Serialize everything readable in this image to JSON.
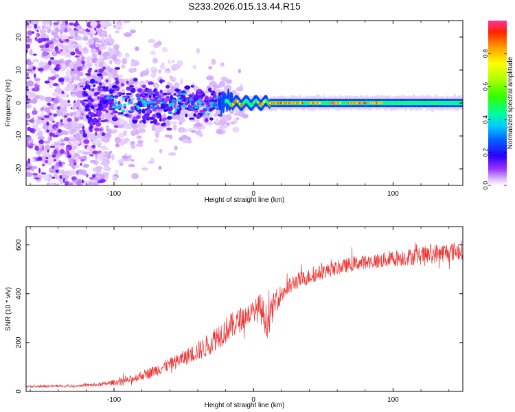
{
  "title": "S233.2026.015.13.44.R15",
  "chart_data": [
    {
      "type": "heatmap",
      "xlabel": "Height of straight line (km)",
      "ylabel": "Frequency (Hz)",
      "xlim": [
        -163,
        150
      ],
      "ylim": [
        -25,
        25
      ],
      "xticks": [
        -100,
        0,
        100
      ],
      "yticks": [
        20,
        10,
        0,
        -10,
        -20
      ],
      "colorbar": {
        "label": "Normalized spectral amplitude",
        "range": [
          0,
          1
        ],
        "ticks": [
          "0.0",
          "0.2",
          "0.4",
          "0.6",
          "0.8"
        ]
      },
      "description_points": {
        "noise_region_x": [
          -163,
          -110
        ],
        "scattered_region_x": [
          -120,
          -25
        ],
        "ridge_region_x": [
          -25,
          150
        ],
        "ridge_frequency_hz": 0
      }
    },
    {
      "type": "line",
      "color": "#ee3333",
      "xlabel": "Height of straight line (km)",
      "ylabel": "SNR (10 * v/v)",
      "xlim": [
        -163,
        150
      ],
      "ylim": [
        0,
        675
      ],
      "xticks": [
        -100,
        0,
        100
      ],
      "yticks": [
        0,
        200,
        400,
        600
      ],
      "series": [
        {
          "name": "SNR",
          "x": [
            -163,
            -130,
            -110,
            -90,
            -75,
            -60,
            -45,
            -35,
            -25,
            -15,
            -8,
            -3,
            0,
            5,
            10,
            15,
            20,
            30,
            40,
            50,
            60,
            70,
            80,
            90,
            100,
            110,
            120,
            130,
            140,
            150
          ],
          "mean": [
            20,
            22,
            28,
            45,
            75,
            110,
            150,
            180,
            230,
            270,
            300,
            320,
            330,
            340,
            280,
            360,
            400,
            450,
            470,
            490,
            505,
            520,
            530,
            535,
            545,
            550,
            555,
            565,
            570,
            580
          ],
          "spread": [
            10,
            10,
            15,
            30,
            45,
            55,
            70,
            90,
            110,
            110,
            100,
            90,
            80,
            130,
            130,
            100,
            80,
            70,
            65,
            60,
            60,
            60,
            60,
            65,
            70,
            70,
            75,
            80,
            80,
            80
          ]
        }
      ]
    }
  ]
}
